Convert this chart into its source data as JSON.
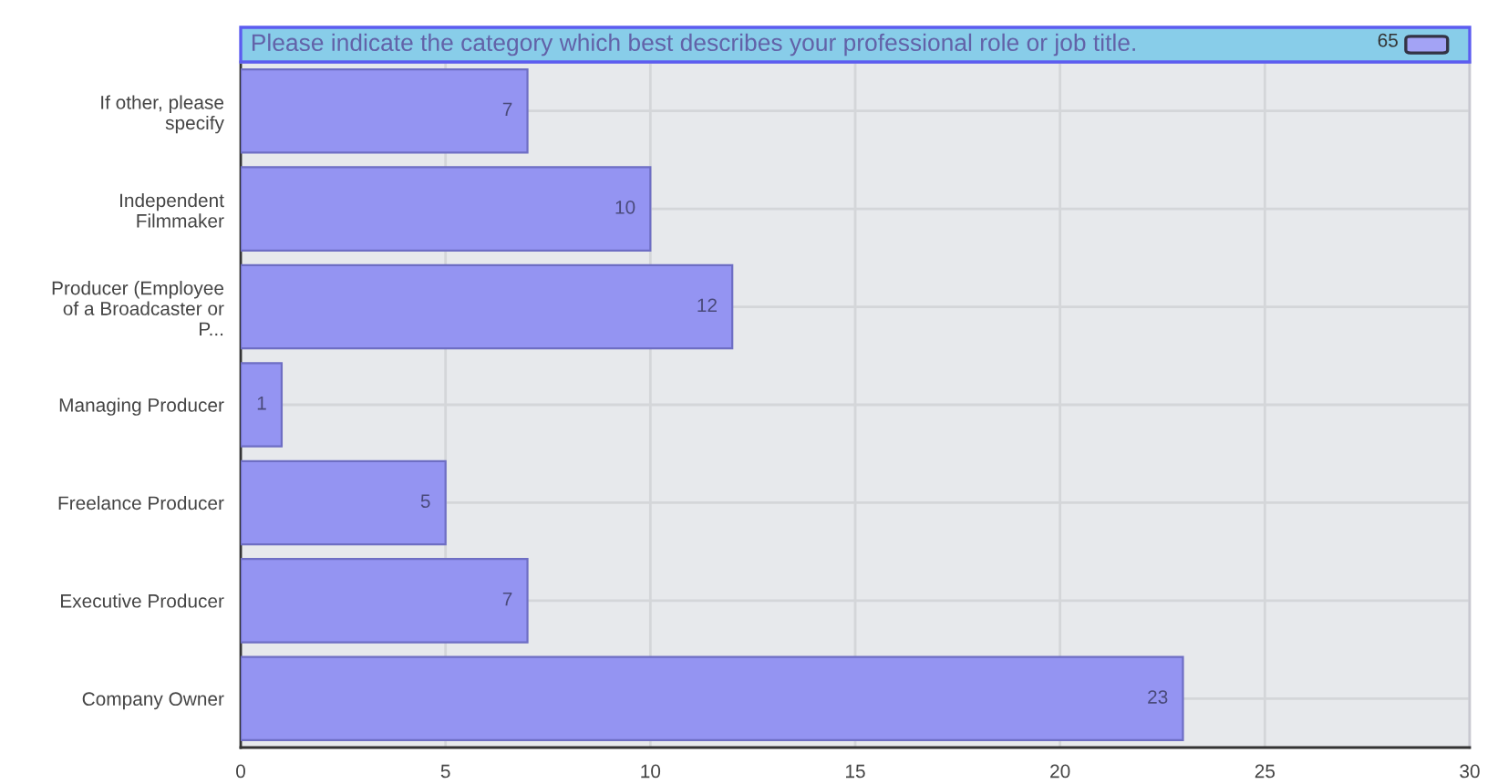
{
  "chart_data": {
    "type": "bar",
    "orientation": "horizontal",
    "title": "Please indicate the category which best describes your professional role or job title.",
    "annotations": [
      "65"
    ],
    "categories": [
      "If other, please\nspecify",
      "Independent\nFilmmaker",
      "Producer (Employee\nof a Broadcaster or\nP...",
      "Managing Producer",
      "Freelance Producer",
      "Executive Producer",
      "Company Owner"
    ],
    "values": [
      7,
      10,
      12,
      1,
      5,
      7,
      23
    ],
    "color": "#9494f2",
    "xlim": [
      0,
      30
    ],
    "xticks": [
      0,
      5,
      10,
      15,
      20,
      25,
      30
    ],
    "grid": true,
    "data_labels": true
  }
}
